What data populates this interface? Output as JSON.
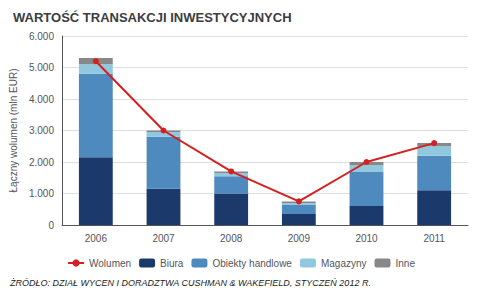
{
  "chart_data": {
    "type": "bar",
    "title": "WARTOŚĆ TRANSAKCJI INWESTYCYJNYCH",
    "ylabel": "Łączny wolumen (mln EUR)",
    "annotations": [
      "ŻRÓDŁO: DZIAŁ WYCEN I DORADZTWA CUSHMAN & WAKEFIELD, STYCZEŃ 2012 R."
    ],
    "categories": [
      "2006",
      "2007",
      "2008",
      "2009",
      "2010",
      "2011"
    ],
    "series": [
      {
        "name": "Wolumen",
        "type": "line",
        "marker": "circle",
        "color": "#d42020",
        "values": [
          5200,
          3000,
          1700,
          750,
          2000,
          2600
        ]
      },
      {
        "name": "Biura",
        "type": "bar",
        "color": "#1b3a6b",
        "values": [
          2150,
          1150,
          1000,
          350,
          600,
          1100
        ]
      },
      {
        "name": "Obiekty handlowe",
        "type": "bar",
        "color": "#4f8abf",
        "values": [
          2650,
          1650,
          550,
          300,
          1100,
          1100
        ]
      },
      {
        "name": "Magazyny",
        "type": "bar",
        "color": "#90c8e0",
        "values": [
          300,
          150,
          100,
          50,
          200,
          300
        ]
      },
      {
        "name": "Inne",
        "type": "bar",
        "color": "#888888",
        "values": [
          200,
          50,
          50,
          50,
          100,
          100
        ]
      }
    ],
    "stacked": true,
    "ylim": [
      0,
      6000
    ],
    "yticks": [
      0,
      {
        "value": 1000,
        "label": "1.000"
      },
      {
        "value": 2000,
        "label": "2.000"
      },
      {
        "value": 3000,
        "label": "3.000"
      },
      {
        "value": 4000,
        "label": "4.000"
      },
      {
        "value": 5000,
        "label": "5.000"
      },
      {
        "value": 6000,
        "label": "6.000"
      }
    ],
    "grid": true,
    "legend": "bottom"
  }
}
